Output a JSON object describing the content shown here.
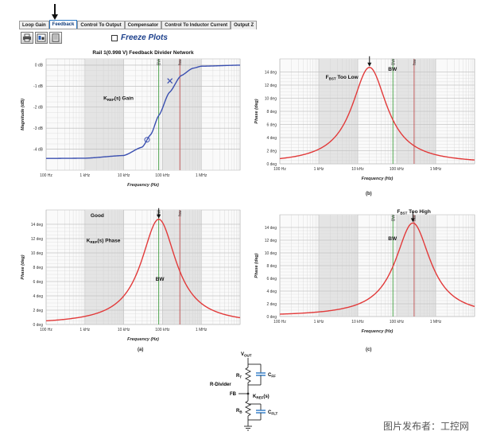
{
  "tabs": [
    {
      "label": "Loop Gain",
      "active": false
    },
    {
      "label": "Feedback",
      "active": true
    },
    {
      "label": "Control To Output",
      "active": false
    },
    {
      "label": "Compensator",
      "active": false
    },
    {
      "label": "Control To Inductor Current",
      "active": false
    },
    {
      "label": "Output Z",
      "active": false
    }
  ],
  "toolbar": {
    "icons": [
      "print-icon",
      "export-icon",
      "copy-icon"
    ]
  },
  "freeze_plots": {
    "label": "Freeze Plots",
    "checked": false
  },
  "colors": {
    "gain_curve": "#3a4fb0",
    "phase_curve": "#e23a3a",
    "bw_line": "#3c9b3c",
    "fsw_line": "#c05050",
    "shade": "#e4e4e4",
    "active_tab": "#2a78c4"
  },
  "captions": {
    "a": "(a)",
    "b": "(b)",
    "c": "(c)"
  },
  "chart_data": [
    {
      "id": "main-gain",
      "type": "line",
      "title": "Rail 1(0.998 V) Feedback Divider Network",
      "xlabel": "Frequency (Hz)",
      "ylabel": "Magnitude (dB)",
      "xscale": "log",
      "xlim": [
        100,
        10000000
      ],
      "ylim": [
        -5,
        0.3
      ],
      "x_ticks": [
        100,
        1000,
        10000,
        100000,
        1000000
      ],
      "x_tick_labels": [
        "100 Hz",
        "1 kHz",
        "10 kHz",
        "100 kHz",
        "1 MHz"
      ],
      "y_ticks": [
        0,
        -1,
        -2,
        -3,
        -4
      ],
      "y_tick_labels": [
        "0 dB",
        "-1 dB",
        "-2 dB",
        "-3 dB",
        "-4 dB"
      ],
      "series": [
        {
          "points": [
            [
              100,
              -4.44
            ],
            [
              1000,
              -4.43
            ],
            [
              10000,
              -4.3
            ],
            [
              30000,
              -3.9
            ],
            [
              50000,
              -3.3
            ],
            [
              80000,
              -2.4
            ],
            [
              150000,
              -1.3
            ],
            [
              300000,
              -0.5
            ],
            [
              600000,
              -0.15
            ],
            [
              1000000,
              -0.05
            ],
            [
              10000000,
              0
            ]
          ]
        }
      ],
      "markers": [
        {
          "shape": "circle",
          "x": 40000,
          "y": -3.55
        },
        {
          "shape": "x",
          "x": 155000,
          "y": -0.75
        }
      ],
      "bw_freq": 80000,
      "fsw_freq": 280000,
      "bw_tag": "BW",
      "fsw_tag": "fsw",
      "annotation": "KREF(s) Gain"
    },
    {
      "id": "phase-too-low",
      "type": "line",
      "title": "",
      "xlabel": "Frequency (Hz)",
      "ylabel": "Phase (deg)",
      "xscale": "log",
      "xlim": [
        100,
        10000000
      ],
      "ylim": [
        0,
        16
      ],
      "x_ticks": [
        100,
        1000,
        10000,
        100000,
        1000000
      ],
      "x_tick_labels": [
        "100 Hz",
        "1 kHz",
        "10 kHz",
        "100 kHz",
        "1 MHz"
      ],
      "y_ticks": [
        0,
        2,
        4,
        6,
        8,
        10,
        12,
        14
      ],
      "y_tick_labels": [
        "0 deg",
        "2 deg",
        "4 deg",
        "6 deg",
        "8 deg",
        "10 deg",
        "12 deg",
        "14 deg"
      ],
      "peak_freq": 20000,
      "peak_deg": 14.7,
      "width_decades": 0.55,
      "bw_freq": 80000,
      "fsw_freq": 280000,
      "bw_tag": "BW",
      "fsw_tag": "fsw",
      "annotation": "FBST Too Low",
      "bw_label": "BW"
    },
    {
      "id": "phase-good",
      "type": "line",
      "title": "",
      "xlabel": "Frequency (Hz)",
      "ylabel": "Phase (deg)",
      "xscale": "log",
      "xlim": [
        100,
        10000000
      ],
      "ylim": [
        0,
        16
      ],
      "x_ticks": [
        100,
        1000,
        10000,
        100000,
        1000000
      ],
      "x_tick_labels": [
        "100 Hz",
        "1 kHz",
        "10 kHz",
        "100 kHz",
        "1 MHz"
      ],
      "y_ticks": [
        0,
        2,
        4,
        6,
        8,
        10,
        12,
        14
      ],
      "y_tick_labels": [
        "0 deg",
        "2 deg",
        "4 deg",
        "6 deg",
        "8 deg",
        "10 deg",
        "12 deg",
        "14 deg"
      ],
      "peak_freq": 80000,
      "peak_deg": 14.7,
      "width_decades": 0.55,
      "bw_freq": 80000,
      "fsw_freq": 280000,
      "bw_tag": "BW",
      "fsw_tag": "fsw",
      "annotation": "KREF(s) Phase",
      "good_label": "Good",
      "bw_label": "BW"
    },
    {
      "id": "phase-too-high",
      "type": "line",
      "title": "",
      "xlabel": "Frequency (Hz)",
      "ylabel": "Phase (deg)",
      "xscale": "log",
      "xlim": [
        100,
        10000000
      ],
      "ylim": [
        0,
        16
      ],
      "x_ticks": [
        100,
        1000,
        10000,
        100000,
        1000000
      ],
      "x_tick_labels": [
        "100 Hz",
        "1 kHz",
        "10 kHz",
        "100 kHz",
        "1 MHz"
      ],
      "y_ticks": [
        0,
        2,
        4,
        6,
        8,
        10,
        12,
        14
      ],
      "y_tick_labels": [
        "0 deg",
        "2 deg",
        "4 deg",
        "6 deg",
        "8 deg",
        "10 deg",
        "12 deg",
        "14 deg"
      ],
      "peak_freq": 260000,
      "peak_deg": 14.7,
      "width_decades": 0.55,
      "bw_freq": 80000,
      "fsw_freq": 280000,
      "bw_tag": "BW",
      "fsw_tag": "fsw",
      "annotation": "FBST Too High",
      "bw_label": "BW"
    }
  ],
  "circuit": {
    "vout": "VOUT",
    "rt": "RT",
    "cff": "CFF",
    "divider": "R-Divider",
    "fb": "FB",
    "kref": "KREF(s)",
    "rb": "RB",
    "cflt": "CFLT"
  },
  "watermark": "图片发布者：工控网"
}
